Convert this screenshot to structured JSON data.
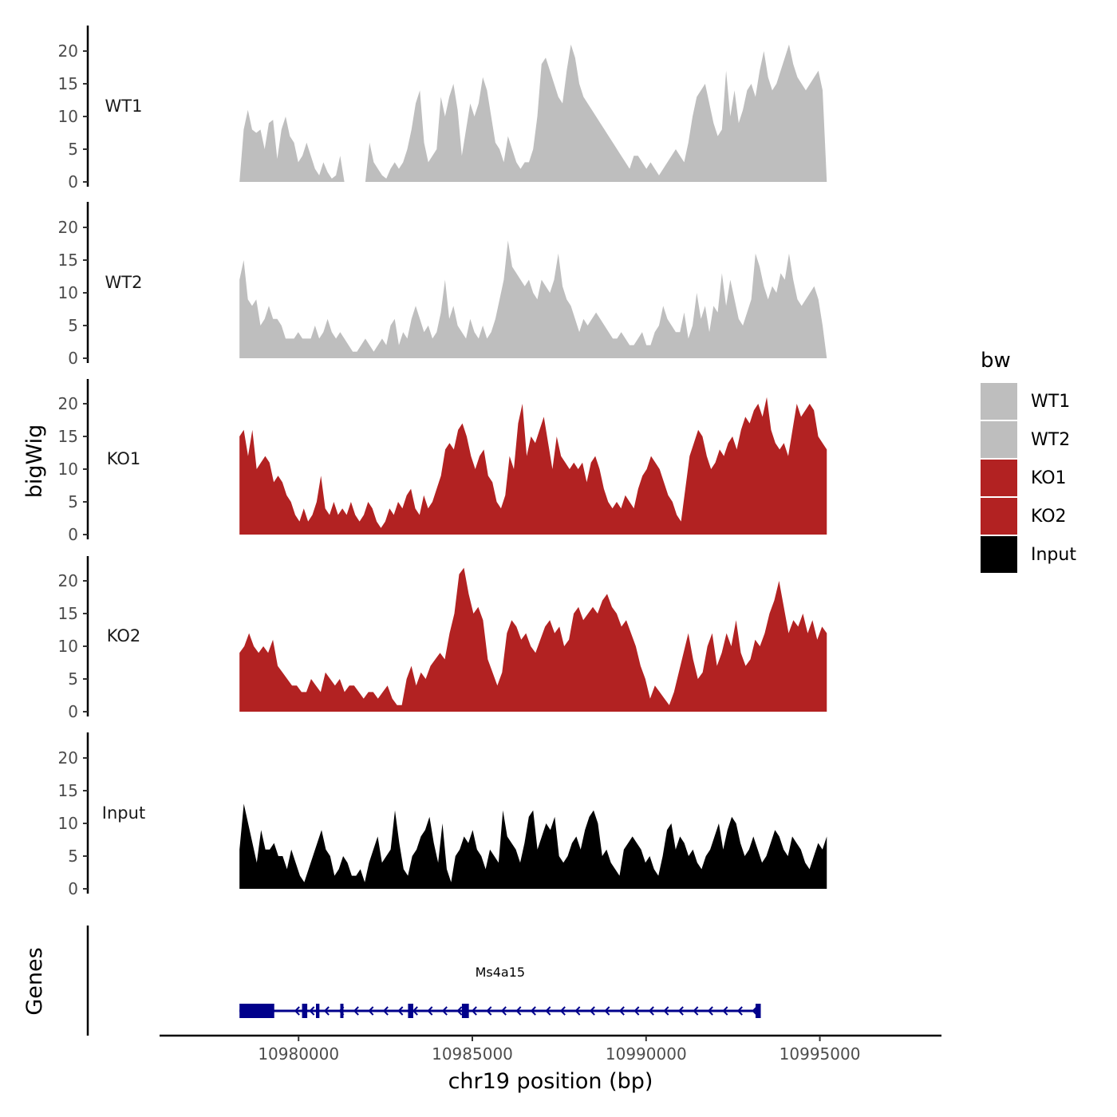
{
  "chart_data": {
    "type": "area",
    "ylabel": "bigWig",
    "xlabel": "chr19 position (bp)",
    "xlim": [
      10976000,
      10998500
    ],
    "ylim": [
      0,
      24
    ],
    "y_ticks": [
      0,
      5,
      10,
      15,
      20
    ],
    "x_ticks": [
      10980000,
      10985000,
      10990000,
      10995000
    ],
    "x_tick_labels": [
      "10980000",
      "10985000",
      "10990000",
      "10995000"
    ],
    "legend": {
      "title": "bw",
      "position": "right",
      "entries": [
        {
          "name": "WT1",
          "color": "#bebebe"
        },
        {
          "name": "WT2",
          "color": "#bebebe"
        },
        {
          "name": "KO1",
          "color": "#b22222"
        },
        {
          "name": "KO2",
          "color": "#b22222"
        },
        {
          "name": "Input",
          "color": "#000000"
        }
      ]
    },
    "x_range_data": [
      10978300,
      10995200
    ],
    "series": [
      {
        "name": "WT1",
        "color": "#bebebe",
        "values": [
          0,
          8,
          11,
          8,
          7.5,
          8,
          5,
          9,
          9.5,
          3.5,
          8,
          10,
          7,
          6,
          3,
          4,
          6,
          4,
          2,
          1,
          3,
          1.5,
          0.5,
          1,
          4,
          0,
          0,
          0,
          0,
          0,
          0,
          6,
          3,
          2,
          1,
          0.5,
          2,
          3,
          2,
          3,
          5,
          8,
          12,
          14,
          6,
          3,
          4,
          5,
          13,
          10,
          13,
          15,
          11,
          4,
          8,
          12,
          10,
          12,
          16,
          14,
          10,
          6,
          5,
          3,
          7,
          5,
          3,
          2,
          3,
          3,
          5,
          10,
          18,
          19,
          17,
          15,
          13,
          12,
          17,
          21,
          19,
          15,
          13,
          12,
          11,
          10,
          9,
          8,
          7,
          6,
          5,
          4,
          3,
          2,
          4,
          4,
          3,
          2,
          3,
          2,
          1,
          2,
          3,
          4,
          5,
          4,
          3,
          6,
          10,
          13,
          14,
          15,
          12,
          9,
          7,
          8,
          17,
          10,
          14,
          9,
          11,
          14,
          15,
          13,
          17,
          20,
          16,
          14,
          15,
          17,
          19,
          21,
          18,
          16,
          15,
          14,
          15,
          16,
          17,
          14,
          0
        ]
      },
      {
        "name": "WT2",
        "color": "#bebebe",
        "values": [
          12,
          15,
          9,
          8,
          9,
          5,
          6,
          8,
          6,
          6,
          5,
          3,
          3,
          3,
          4,
          3,
          3,
          3,
          5,
          3,
          4,
          6,
          4,
          3,
          4,
          3,
          2,
          1,
          1,
          2,
          3,
          2,
          1,
          2,
          3,
          2,
          5,
          6,
          2,
          4,
          3,
          6,
          8,
          6,
          4,
          5,
          3,
          4,
          7,
          12,
          6,
          8,
          5,
          4,
          3,
          6,
          4,
          3,
          5,
          3,
          4,
          6,
          9,
          12,
          18,
          14,
          13,
          12,
          11,
          12,
          10,
          9,
          12,
          11,
          10,
          12,
          16,
          11,
          9,
          8,
          6,
          4,
          6,
          5,
          6,
          7,
          6,
          5,
          4,
          3,
          3,
          4,
          3,
          2,
          2,
          3,
          4,
          2,
          2,
          4,
          5,
          8,
          6,
          5,
          4,
          4,
          7,
          3,
          5,
          10,
          6,
          8,
          4,
          8,
          7,
          13,
          8,
          12,
          9,
          6,
          5,
          7,
          9,
          16,
          14,
          11,
          9,
          11,
          10,
          13,
          12,
          16,
          12,
          9,
          8,
          9,
          10,
          11,
          9,
          5,
          0
        ]
      },
      {
        "name": "KO1",
        "color": "#b22222",
        "values": [
          15,
          16,
          12,
          16,
          10,
          11,
          12,
          11,
          8,
          9,
          8,
          6,
          5,
          3,
          2,
          4,
          2,
          3,
          5,
          9,
          4,
          3,
          5,
          3,
          4,
          3,
          5,
          3,
          2,
          3,
          5,
          4,
          2,
          1,
          2,
          4,
          3,
          5,
          4,
          6,
          7,
          4,
          3,
          6,
          4,
          5,
          7,
          9,
          13,
          14,
          13,
          16,
          17,
          15,
          12,
          10,
          12,
          13,
          9,
          8,
          5,
          4,
          6,
          12,
          10,
          17,
          20,
          12,
          15,
          14,
          16,
          18,
          14,
          10,
          15,
          12,
          11,
          10,
          11,
          10,
          11,
          8,
          11,
          12,
          10,
          7,
          5,
          4,
          5,
          4,
          6,
          5,
          4,
          7,
          9,
          10,
          12,
          11,
          10,
          8,
          6,
          5,
          3,
          2,
          7,
          12,
          14,
          16,
          15,
          12,
          10,
          11,
          13,
          12,
          14,
          15,
          13,
          16,
          18,
          17,
          19,
          20,
          18,
          21,
          16,
          14,
          13,
          14,
          12,
          16,
          20,
          18,
          19,
          20,
          19,
          15,
          14,
          13
        ]
      },
      {
        "name": "KO2",
        "color": "#b22222",
        "values": [
          9,
          10,
          12,
          10,
          9,
          10,
          9,
          11,
          7,
          6,
          5,
          4,
          4,
          3,
          3,
          5,
          4,
          3,
          6,
          5,
          4,
          5,
          3,
          4,
          4,
          3,
          2,
          3,
          3,
          2,
          3,
          4,
          2,
          1,
          1,
          5,
          7,
          4,
          6,
          5,
          7,
          8,
          9,
          8,
          12,
          15,
          21,
          22,
          18,
          15,
          16,
          14,
          8,
          6,
          4,
          6,
          12,
          14,
          13,
          11,
          12,
          10,
          9,
          11,
          13,
          14,
          12,
          13,
          10,
          11,
          15,
          16,
          14,
          15,
          16,
          15,
          17,
          18,
          16,
          15,
          13,
          14,
          12,
          10,
          7,
          5,
          2,
          4,
          3,
          2,
          1,
          3,
          6,
          9,
          12,
          8,
          5,
          6,
          10,
          12,
          7,
          9,
          12,
          10,
          14,
          9,
          7,
          8,
          11,
          10,
          12,
          15,
          17,
          20,
          16,
          12,
          14,
          13,
          15,
          12,
          14,
          11,
          13,
          12
        ]
      },
      {
        "name": "Input",
        "color": "#000000",
        "values": [
          6,
          13,
          10,
          7,
          4,
          9,
          6,
          6,
          7,
          5,
          5,
          3,
          6,
          4,
          2,
          1,
          3,
          5,
          7,
          9,
          6,
          5,
          2,
          3,
          5,
          4,
          2,
          2,
          3,
          1,
          4,
          6,
          8,
          4,
          5,
          6,
          12,
          7,
          3,
          2,
          5,
          6,
          8,
          9,
          11,
          7,
          4,
          10,
          3,
          1,
          5,
          6,
          8,
          7,
          9,
          6,
          5,
          3,
          6,
          5,
          4,
          12,
          8,
          7,
          6,
          4,
          7,
          11,
          12,
          6,
          8,
          10,
          9,
          11,
          5,
          4,
          5,
          7,
          8,
          6,
          9,
          11,
          12,
          10,
          5,
          6,
          4,
          3,
          2,
          6,
          7,
          8,
          7,
          6,
          4,
          5,
          3,
          2,
          5,
          9,
          10,
          6,
          8,
          7,
          5,
          6,
          4,
          3,
          5,
          6,
          8,
          10,
          6,
          9,
          11,
          10,
          7,
          5,
          6,
          8,
          6,
          4,
          5,
          7,
          9,
          8,
          6,
          5,
          8,
          7,
          6,
          4,
          3,
          5,
          7,
          6,
          8
        ]
      }
    ],
    "gene_track": {
      "label": "Genes",
      "gene_name": "Ms4a15",
      "color": "#00008b",
      "start": 10978300,
      "end": 10993300,
      "strand": "-",
      "exons": [
        [
          10978300,
          10979300
        ],
        [
          10980100,
          10980250
        ],
        [
          10980500,
          10980600
        ],
        [
          10981200,
          10981280
        ],
        [
          10983150,
          10983300
        ],
        [
          10984700,
          10984900
        ],
        [
          10993150,
          10993300
        ]
      ]
    }
  }
}
